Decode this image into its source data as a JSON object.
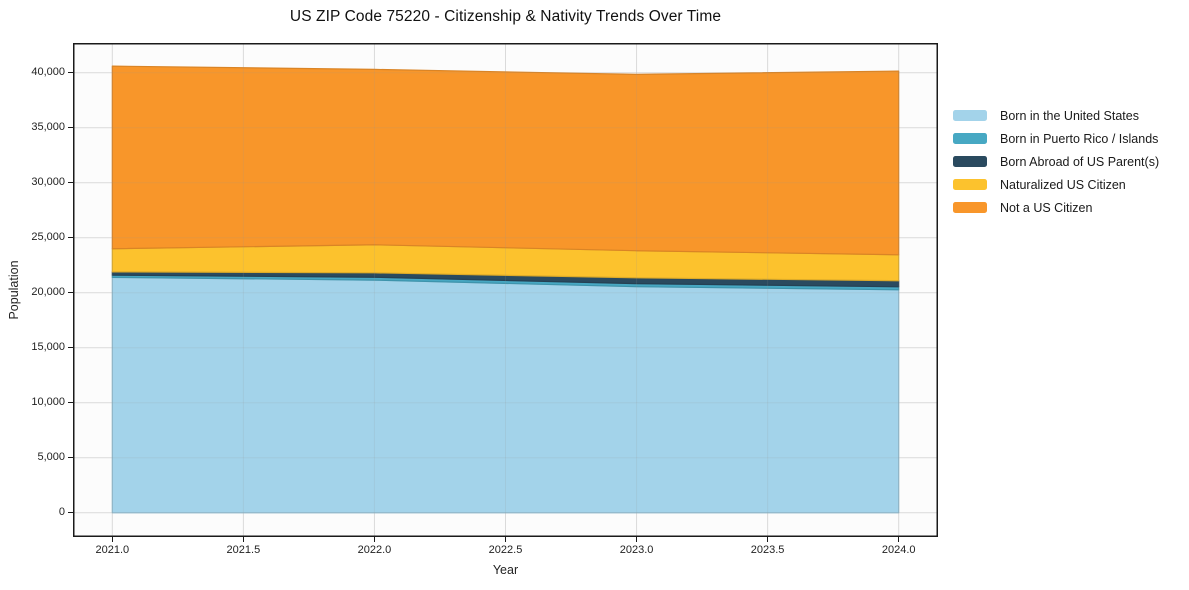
{
  "chart_data": {
    "type": "area",
    "stacked": true,
    "title": "US ZIP Code 75220 - Citizenship & Nativity Trends Over Time",
    "xlabel": "Year",
    "ylabel": "Population",
    "x": [
      2021,
      2022,
      2023,
      2024
    ],
    "series": [
      {
        "name": "Born in the United States",
        "color": "#a3d3ea",
        "values": [
          21400,
          21150,
          20550,
          20270
        ]
      },
      {
        "name": "Born in Puerto Rico / Islands",
        "color": "#47a8c3",
        "values": [
          200,
          260,
          280,
          270
        ]
      },
      {
        "name": "Born Abroad of US Parent(s)",
        "color": "#2a4a5f",
        "values": [
          300,
          400,
          530,
          550
        ]
      },
      {
        "name": "Naturalized US Citizen",
        "color": "#fcc22d",
        "values": [
          2100,
          2550,
          2460,
          2360
        ]
      },
      {
        "name": "Not a US Citizen",
        "color": "#f8962a",
        "values": [
          16600,
          15940,
          16030,
          16700
        ]
      }
    ],
    "x_tick_labels": [
      "2021.0",
      "2021.5",
      "2022.0",
      "2022.5",
      "2023.0",
      "2023.5",
      "2024.0"
    ],
    "y_tick_labels": [
      "0",
      "5,000",
      "10,000",
      "15,000",
      "20,000",
      "25,000",
      "30,000",
      "35,000",
      "40,000"
    ],
    "xlim": [
      2020.85,
      2024.15
    ],
    "ylim": [
      -2200,
      42700
    ],
    "grid": true,
    "legend_position": "right"
  },
  "colors": {
    "plot_background": "#fcfcfc",
    "gridline": "#e8e8e8",
    "spine": "#1a1a1a"
  }
}
